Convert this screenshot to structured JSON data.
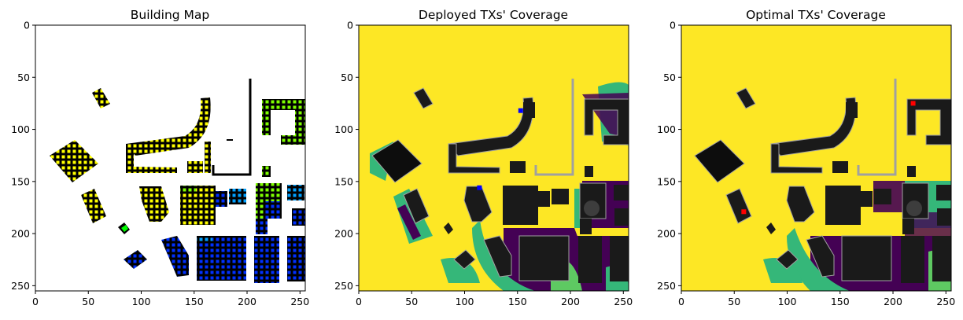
{
  "figure": {
    "panels": [
      {
        "title": "Building Map"
      },
      {
        "title": "Deployed TXs' Coverage"
      },
      {
        "title": "Optimal TXs' Coverage"
      }
    ]
  },
  "colors": {
    "background_white": "#ffffff",
    "building": "#000000",
    "building_dark": "#1a1a1a",
    "yellow_coverage": "#fde725",
    "teal_coverage": "#35b779",
    "green_coverage": "#5ec962",
    "dark_purple": "#440154",
    "outline_gray": "#a0a0a0",
    "marker_yellow": "#ffff00",
    "marker_lime": "#7fff00",
    "marker_blue": "#0030ff",
    "marker_cyan": "#00a0ff",
    "marker_green": "#00ff00",
    "tx_red": "#ff0000",
    "tx_blue": "#0000ff"
  },
  "chart_data": [
    {
      "type": "heatmap",
      "title": "Building Map",
      "xlabel": "",
      "ylabel": "",
      "xlim": [
        0,
        255
      ],
      "ylim": [
        255,
        0
      ],
      "xticks": [
        0,
        50,
        100,
        150,
        200,
        250
      ],
      "yticks": [
        0,
        50,
        100,
        150,
        200,
        250
      ],
      "legend": "none",
      "grid": false,
      "building_marker_colors": [
        "yellow",
        "lime",
        "blue",
        "cyan",
        "green"
      ]
    },
    {
      "type": "heatmap",
      "title": "Deployed TXs' Coverage",
      "xlabel": "",
      "ylabel": "",
      "xlim": [
        0,
        255
      ],
      "ylim": [
        255,
        0
      ],
      "xticks": [
        0,
        50,
        100,
        150,
        200,
        250
      ],
      "yticks": [
        0,
        50,
        100,
        150,
        200,
        250
      ],
      "legend": "none",
      "grid": false,
      "transmitters": [
        {
          "x": 153,
          "y": 82,
          "color": "blue"
        },
        {
          "x": 114,
          "y": 156,
          "color": "blue"
        }
      ]
    },
    {
      "type": "heatmap",
      "title": "Optimal TXs' Coverage",
      "xlabel": "",
      "ylabel": "",
      "xlim": [
        0,
        255
      ],
      "ylim": [
        255,
        0
      ],
      "xticks": [
        0,
        50,
        100,
        150,
        200,
        250
      ],
      "yticks": [
        0,
        50,
        100,
        150,
        200,
        250
      ],
      "legend": "none",
      "grid": false,
      "transmitters": [
        {
          "x": 219,
          "y": 75,
          "color": "red"
        },
        {
          "x": 59,
          "y": 179,
          "color": "red"
        }
      ]
    }
  ]
}
